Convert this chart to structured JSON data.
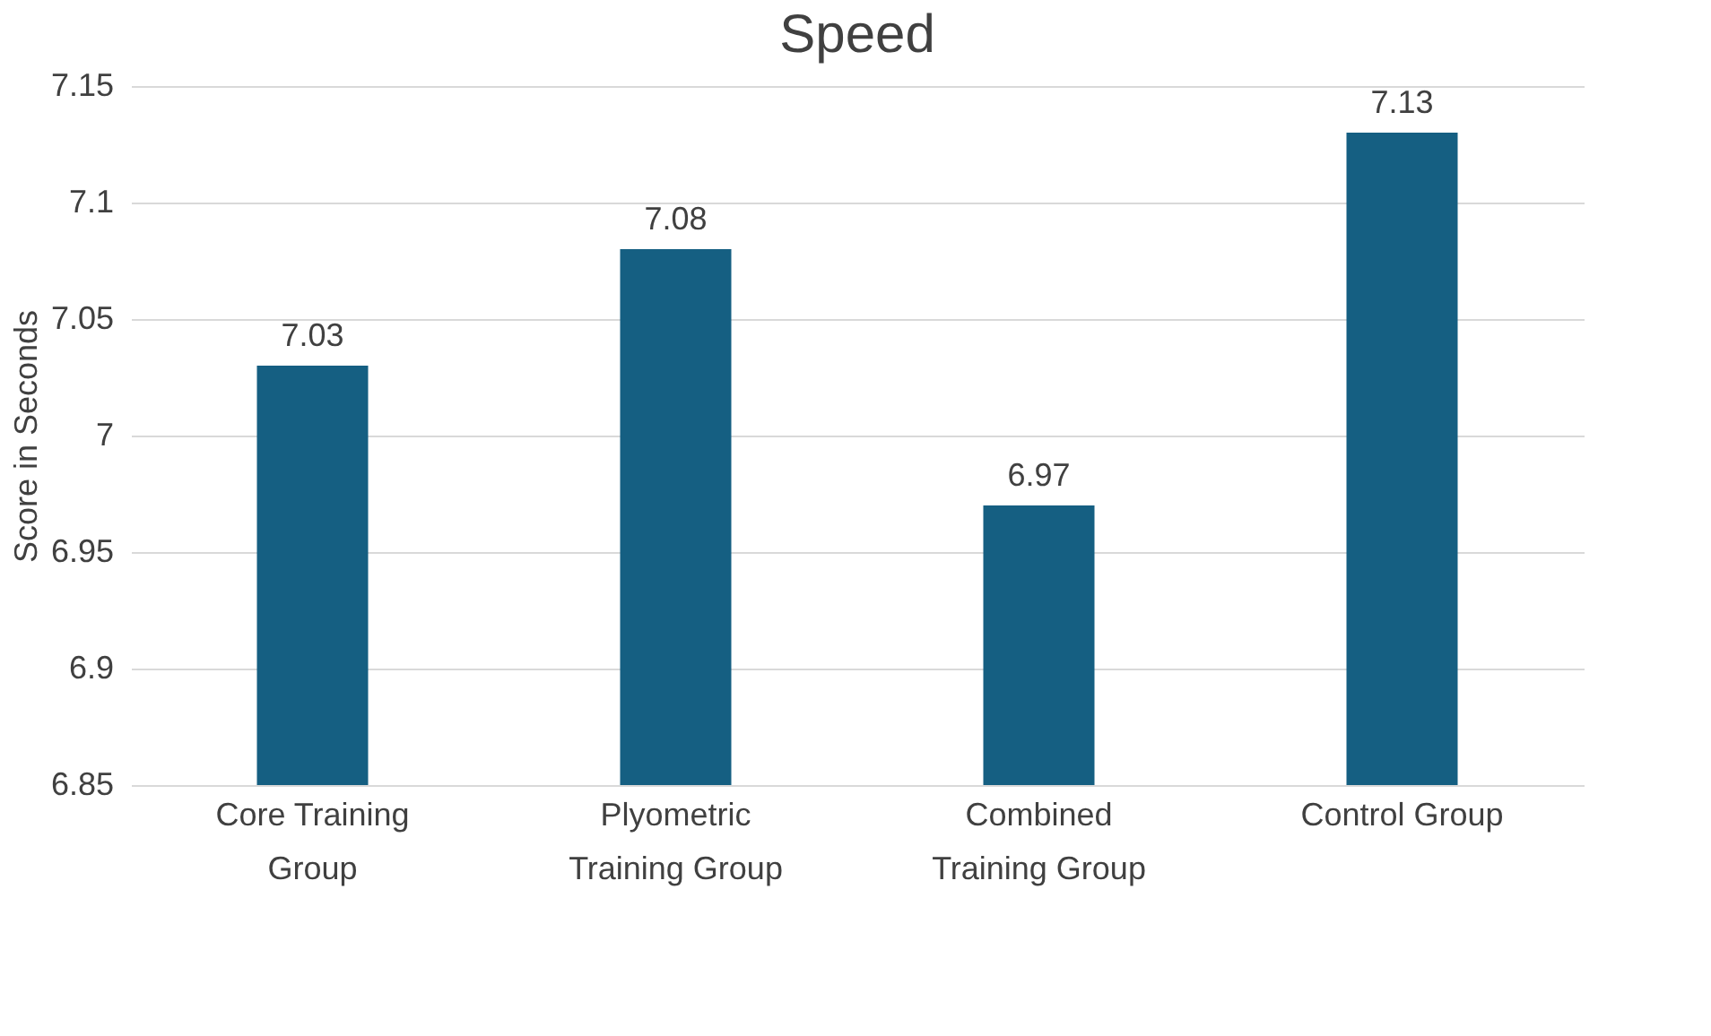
{
  "chart_data": {
    "type": "bar",
    "title": "Speed",
    "ylabel": "Score in Seconds",
    "categories": [
      "Core Training Group",
      "Plyometric Training Group",
      "Combined Training Group",
      "Control Group"
    ],
    "values": [
      7.03,
      7.08,
      6.97,
      7.13
    ],
    "color": "#155f82",
    "ylim": [
      6.85,
      7.15
    ],
    "yticks": [
      6.85,
      6.9,
      6.95,
      7,
      7.05,
      7.1,
      7.15
    ],
    "grid": "y",
    "data_labels": true
  }
}
